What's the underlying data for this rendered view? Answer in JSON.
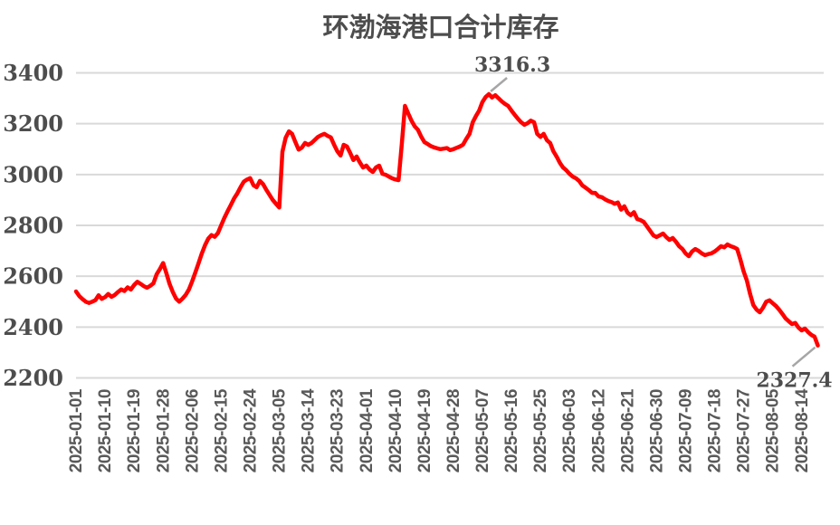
{
  "chart_data": {
    "type": "line",
    "title": "环渤海港口合计库存",
    "legend": "none",
    "grid": "horizontal",
    "xlabel": "",
    "ylabel": "",
    "ylim": [
      2200,
      3400
    ],
    "y_ticks": [
      3400,
      3200,
      3000,
      2800,
      2600,
      2400,
      2200
    ],
    "x_tick_interval_days": 9,
    "x_tick_labels": [
      "2025-01-01",
      "2025-01-10",
      "2025-01-19",
      "2025-01-28",
      "2025-02-06",
      "2025-02-15",
      "2025-02-24",
      "2025-03-05",
      "2025-03-14",
      "2025-03-23",
      "2025-04-01",
      "2025-04-10",
      "2025-04-19",
      "2025-04-28",
      "2025-05-07",
      "2025-05-16",
      "2025-05-25",
      "2025-06-03",
      "2025-06-12",
      "2025-06-21",
      "2025-06-30",
      "2025-07-09",
      "2025-07-18",
      "2025-07-27",
      "2025-08-05",
      "2025-08-14"
    ],
    "series": [
      {
        "name": "环渤海港口合计库存",
        "start_date": "2025-01-01",
        "interval_days": 1,
        "values": [
          2540,
          2522,
          2510,
          2500,
          2495,
          2500,
          2506,
          2525,
          2511,
          2518,
          2530,
          2519,
          2526,
          2538,
          2548,
          2542,
          2556,
          2548,
          2565,
          2578,
          2570,
          2561,
          2555,
          2562,
          2572,
          2608,
          2628,
          2652,
          2612,
          2570,
          2538,
          2512,
          2500,
          2512,
          2526,
          2548,
          2580,
          2615,
          2652,
          2690,
          2722,
          2748,
          2762,
          2755,
          2770,
          2800,
          2830,
          2856,
          2880,
          2906,
          2926,
          2950,
          2972,
          2980,
          2986,
          2958,
          2950,
          2975,
          2962,
          2940,
          2920,
          2900,
          2885,
          2870,
          3090,
          3145,
          3170,
          3160,
          3128,
          3098,
          3106,
          3124,
          3117,
          3124,
          3136,
          3148,
          3155,
          3160,
          3152,
          3146,
          3118,
          3092,
          3075,
          3117,
          3110,
          3085,
          3057,
          3071,
          3048,
          3028,
          3035,
          3020,
          3010,
          3028,
          3035,
          3003,
          2999,
          2992,
          2985,
          2981,
          2978,
          3120,
          3270,
          3240,
          3212,
          3190,
          3176,
          3150,
          3128,
          3120,
          3112,
          3107,
          3103,
          3100,
          3102,
          3104,
          3096,
          3100,
          3105,
          3110,
          3118,
          3140,
          3160,
          3206,
          3230,
          3252,
          3285,
          3305,
          3316.3,
          3303,
          3312,
          3300,
          3288,
          3278,
          3270,
          3252,
          3235,
          3220,
          3206,
          3196,
          3202,
          3212,
          3206,
          3160,
          3148,
          3160,
          3135,
          3124,
          3092,
          3071,
          3046,
          3028,
          3017,
          3003,
          2992,
          2985,
          2975,
          2957,
          2948,
          2939,
          2928,
          2928,
          2914,
          2911,
          2903,
          2896,
          2892,
          2885,
          2890,
          2862,
          2875,
          2850,
          2840,
          2852,
          2825,
          2821,
          2814,
          2796,
          2779,
          2761,
          2754,
          2761,
          2768,
          2754,
          2743,
          2750,
          2736,
          2718,
          2707,
          2690,
          2679,
          2697,
          2707,
          2700,
          2690,
          2683,
          2687,
          2690,
          2697,
          2707,
          2718,
          2714,
          2725,
          2718,
          2714,
          2707,
          2665,
          2619,
          2583,
          2530,
          2487,
          2469,
          2458,
          2476,
          2500,
          2505,
          2494,
          2483,
          2469,
          2452,
          2434,
          2423,
          2412,
          2416,
          2398,
          2387,
          2394,
          2380,
          2369,
          2362,
          2327.4
        ]
      }
    ],
    "annotations": [
      {
        "label": "3316.3",
        "value": 3316.3,
        "anchor": "max"
      },
      {
        "label": "2327.4",
        "value": 2327.4,
        "anchor": "last"
      }
    ],
    "colors": {
      "line": "#ff0000",
      "grid": "#d9d9d9",
      "text": "#4d4d4d",
      "x_text": "#595959",
      "callout": "#a6a6a6",
      "background": "#ffffff"
    }
  }
}
